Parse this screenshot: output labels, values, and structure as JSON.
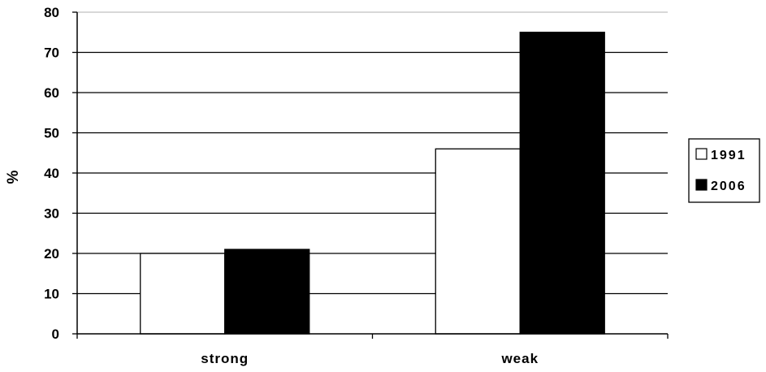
{
  "chart_data": {
    "type": "bar",
    "categories": [
      "strong",
      "weak"
    ],
    "series": [
      {
        "name": "1991",
        "values": [
          20,
          46
        ],
        "color": "#ffffff"
      },
      {
        "name": "2006",
        "values": [
          21,
          75
        ],
        "color": "#000000"
      }
    ],
    "title": "",
    "xlabel": "",
    "ylabel": "%",
    "ylim": [
      0,
      80
    ],
    "yticks": [
      0,
      10,
      20,
      30,
      40,
      50,
      60,
      70,
      80
    ],
    "grid": true,
    "legend_position": "right"
  }
}
